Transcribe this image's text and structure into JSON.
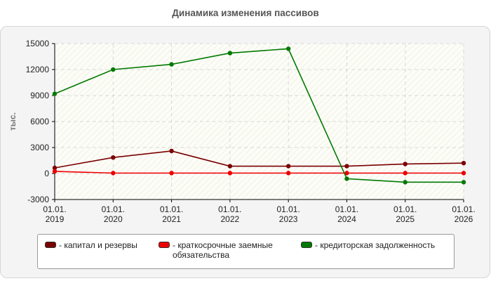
{
  "chart_data": {
    "type": "line",
    "title": "Динамика изменения пассивов",
    "ylabel": "тыс.",
    "xlabel": "",
    "ylim": [
      -3000,
      15000
    ],
    "yticks": [
      -3000,
      0,
      3000,
      6000,
      9000,
      12000,
      15000
    ],
    "yticks_labels": [
      "-3000",
      "0",
      "3000",
      "6000",
      "9000",
      "12000",
      "15000"
    ],
    "categories": [
      [
        "01.01.",
        "2019"
      ],
      [
        "01.01.",
        "2020"
      ],
      [
        "01.01.",
        "2021"
      ],
      [
        "01.01.",
        "2022"
      ],
      [
        "01.01.",
        "2023"
      ],
      [
        "01.01.",
        "2024"
      ],
      [
        "01.01.",
        "2025"
      ],
      [
        "01.01.",
        "2026"
      ]
    ],
    "grid": true,
    "legend_position": "bottom",
    "series": [
      {
        "name": "капитал и резервы",
        "color": "#7a0000",
        "values": [
          650,
          1850,
          2600,
          850,
          850,
          850,
          1100,
          1200
        ]
      },
      {
        "name": "краткосрочные заемные обязательства",
        "color": "#ee0000",
        "values": [
          250,
          50,
          50,
          50,
          50,
          50,
          50,
          50
        ]
      },
      {
        "name": "кредиторская задолженность",
        "color": "#007a00",
        "values": [
          9200,
          12000,
          12600,
          13900,
          14400,
          -600,
          -1000,
          -1000
        ]
      }
    ],
    "legend_labels": [
      "- капитал и резервы",
      "- краткосрочные заемные обязательства",
      "- кредиторская задолженность"
    ]
  }
}
